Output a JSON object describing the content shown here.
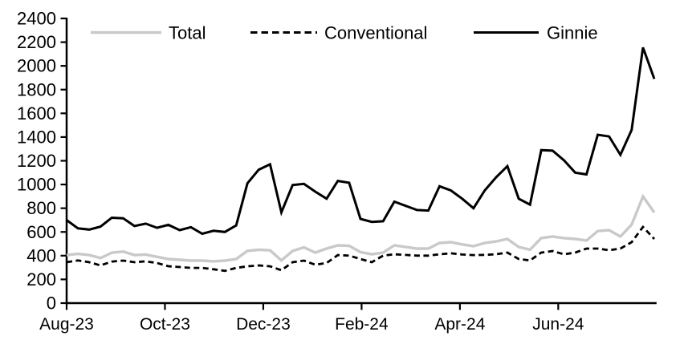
{
  "chart_data": {
    "type": "line",
    "title": "",
    "x_axis": {
      "unit": "weekly",
      "tick_labels": [
        "Aug-23",
        "Oct-23",
        "Dec-23",
        "Feb-24",
        "Apr-24",
        "Jun-24"
      ],
      "tick_week_positions": [
        0,
        8.7,
        17.4,
        26.1,
        34.8,
        43.5
      ],
      "axis_end_week": 52.2
    },
    "y_axis": {
      "min": 0,
      "max": 2400,
      "step": 200,
      "tick_labels": [
        "0",
        "200",
        "400",
        "600",
        "800",
        "1000",
        "1200",
        "1400",
        "1600",
        "1800",
        "2000",
        "2200",
        "2400"
      ]
    },
    "grid": false,
    "legend_position": "top",
    "series": [
      {
        "name": "Total",
        "color": "#c9c9c9",
        "style": "solid",
        "values": [
          405,
          415,
          405,
          380,
          425,
          435,
          405,
          410,
          390,
          372,
          365,
          358,
          358,
          352,
          358,
          372,
          440,
          450,
          445,
          360,
          440,
          470,
          426,
          460,
          487,
          483,
          430,
          412,
          426,
          487,
          473,
          460,
          460,
          507,
          514,
          495,
          480,
          507,
          520,
          541,
          473,
          450,
          548,
          561,
          548,
          541,
          527,
          608,
          615,
          561,
          662,
          899,
          764
        ]
      },
      {
        "name": "Conventional",
        "color": "#000000",
        "style": "dashed",
        "values": [
          345,
          360,
          345,
          318,
          350,
          358,
          345,
          352,
          338,
          311,
          304,
          297,
          297,
          285,
          272,
          297,
          310,
          318,
          310,
          277,
          345,
          358,
          324,
          338,
          405,
          400,
          372,
          345,
          400,
          412,
          406,
          400,
          400,
          412,
          420,
          410,
          405,
          406,
          412,
          426,
          372,
          360,
          426,
          439,
          412,
          426,
          460,
          460,
          446,
          460,
          514,
          642,
          541
        ]
      },
      {
        "name": "Ginnie",
        "color": "#000000",
        "style": "solid",
        "values": [
          700,
          630,
          620,
          645,
          720,
          715,
          650,
          670,
          635,
          660,
          615,
          640,
          585,
          610,
          600,
          655,
          1010,
          1125,
          1170,
          765,
          995,
          1005,
          940,
          880,
          1030,
          1015,
          710,
          685,
          690,
          855,
          820,
          785,
          780,
          985,
          950,
          880,
          800,
          950,
          1060,
          1155,
          880,
          830,
          1290,
          1285,
          1205,
          1100,
          1085,
          1420,
          1405,
          1250,
          1460,
          2155,
          1890
        ]
      }
    ],
    "colors": {
      "background": "#ffffff",
      "axis": "#000000",
      "text": "#000000"
    }
  }
}
